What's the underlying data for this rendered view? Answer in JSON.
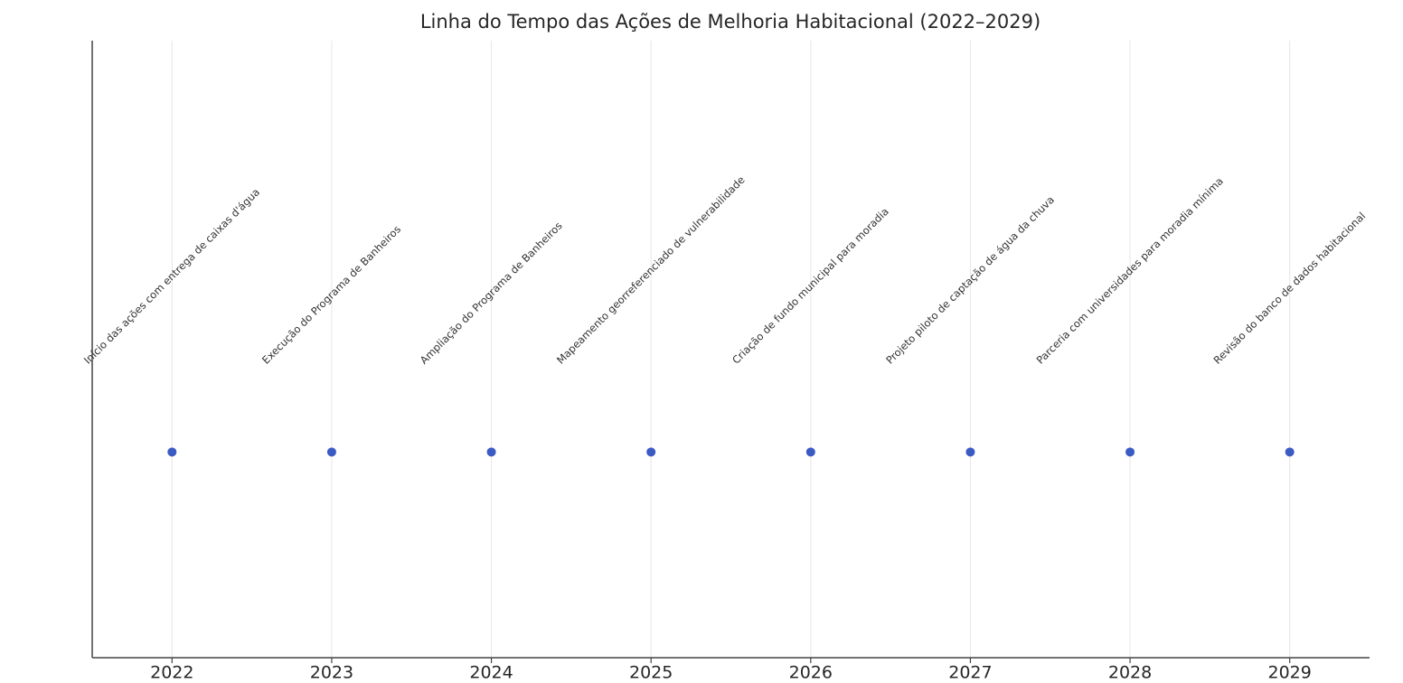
{
  "chart_data": {
    "type": "scatter",
    "title": "Linha do Tempo das Ações de Melhoria Habitacional (2022–2029)",
    "x": [
      2022,
      2023,
      2024,
      2025,
      2026,
      2027,
      2028,
      2029
    ],
    "values": [
      0,
      0,
      0,
      0,
      0,
      0,
      0,
      0
    ],
    "labels": [
      "Início das ações com entrega de caixas d'água",
      "Execução do Programa de Banheiros",
      "Ampliação do Programa de Banheiros",
      "Mapeamento georreferenciado de vulnerabilidade",
      "Criação de fundo municipal para moradia",
      "Projeto piloto de captação de água da chuva",
      "Parceria com universidades para moradia mínima",
      "Revisão do banco de dados habitacional"
    ],
    "color": "#3b5bc4",
    "xlim": [
      2021.5,
      2029.5
    ],
    "xticks": [
      2022,
      2023,
      2024,
      2025,
      2026,
      2027,
      2028,
      2029
    ],
    "ylim": [
      -0.5,
      1
    ],
    "grid": true
  }
}
